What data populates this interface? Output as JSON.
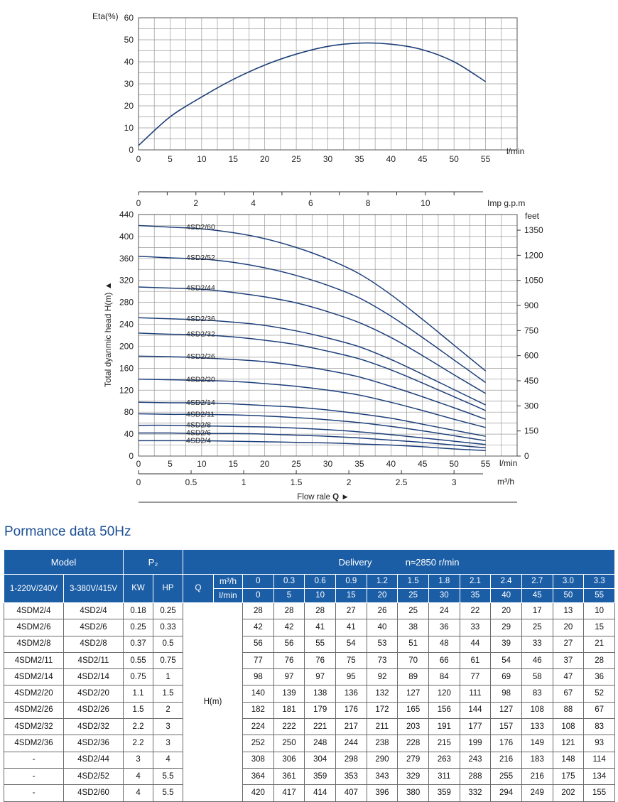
{
  "chart_data": [
    {
      "type": "line",
      "ylabel": "Eta(%)",
      "xlabel": "l/min",
      "x_ticks": [
        0,
        5,
        10,
        15,
        20,
        25,
        30,
        35,
        40,
        45,
        50,
        55
      ],
      "y_ticks": [
        0,
        10,
        20,
        30,
        40,
        50,
        60
      ],
      "xlim": [
        0,
        60
      ],
      "ylim": [
        0,
        60
      ],
      "grid": true,
      "series": [
        {
          "x": [
            0,
            5,
            10,
            15,
            20,
            25,
            30,
            35,
            40,
            45,
            50,
            55
          ],
          "y": [
            2,
            15,
            24,
            32,
            38.5,
            43.5,
            47,
            48.5,
            48,
            45.5,
            40,
            31
          ]
        }
      ]
    },
    {
      "type": "line",
      "ylabel": "Total dyanmic head H(m) ▲",
      "xlabel": "l/min",
      "x_ticks": [
        0,
        5,
        10,
        15,
        20,
        25,
        30,
        35,
        40,
        45,
        50,
        55
      ],
      "y_ticks": [
        0,
        40,
        80,
        120,
        160,
        200,
        240,
        280,
        320,
        360,
        400,
        440
      ],
      "xlim": [
        0,
        60
      ],
      "ylim": [
        0,
        440
      ],
      "grid": true,
      "secondary_y": {
        "label": "feet",
        "ticks": [
          0,
          150,
          300,
          450,
          600,
          750,
          900,
          1050,
          1200,
          1350
        ]
      },
      "top_x": {
        "label": "Imp g.p.m",
        "ticks": [
          0,
          2,
          4,
          6,
          8,
          10
        ]
      },
      "bottom_x2": {
        "label": "m³/h",
        "ticks": [
          "0",
          "0.5",
          "1",
          "1.5",
          "2",
          "2.5",
          "3"
        ]
      },
      "flow_label": "Flow rale",
      "flow_symbol": "Q",
      "x": [
        0,
        5,
        10,
        15,
        20,
        25,
        30,
        35,
        40,
        45,
        50,
        55
      ],
      "series": [
        {
          "name": "4SD2/60",
          "values": [
            420,
            417,
            414,
            407,
            396,
            380,
            359,
            332,
            294,
            249,
            202,
            155
          ]
        },
        {
          "name": "4SD2/52",
          "values": [
            364,
            361,
            359,
            353,
            343,
            329,
            311,
            288,
            255,
            216,
            175,
            134
          ]
        },
        {
          "name": "4SD2/44",
          "values": [
            308,
            306,
            304,
            298,
            290,
            279,
            263,
            243,
            216,
            183,
            148,
            114
          ]
        },
        {
          "name": "4SD2/36",
          "values": [
            252,
            250,
            248,
            244,
            238,
            228,
            215,
            199,
            176,
            149,
            121,
            93
          ]
        },
        {
          "name": "4SD2/32",
          "values": [
            224,
            222,
            221,
            217,
            211,
            203,
            191,
            177,
            157,
            133,
            108,
            83
          ]
        },
        {
          "name": "4SD2/26",
          "values": [
            182,
            181,
            179,
            176,
            172,
            165,
            156,
            144,
            127,
            108,
            88,
            67
          ]
        },
        {
          "name": "4SD2/20",
          "values": [
            140,
            139,
            138,
            136,
            132,
            127,
            120,
            111,
            98,
            83,
            67,
            52
          ]
        },
        {
          "name": "4SD2/14",
          "values": [
            98,
            97,
            97,
            95,
            92,
            89,
            84,
            77,
            69,
            58,
            47,
            36
          ]
        },
        {
          "name": "4SD2/11",
          "values": [
            77,
            76,
            76,
            75,
            73,
            70,
            66,
            61,
            54,
            46,
            37,
            28
          ]
        },
        {
          "name": "4SD2/8",
          "values": [
            56,
            56,
            55,
            54,
            53,
            51,
            48,
            44,
            39,
            33,
            27,
            21
          ]
        },
        {
          "name": "4SD2/6",
          "values": [
            42,
            42,
            41,
            41,
            40,
            38,
            36,
            33,
            29,
            25,
            20,
            15
          ]
        },
        {
          "name": "4SD2/4",
          "values": [
            28,
            28,
            28,
            27,
            26,
            25,
            24,
            22,
            20,
            17,
            13,
            10
          ]
        }
      ]
    },
    {
      "type": "table",
      "title": "Pormance data 50Hz",
      "header": {
        "model": "Model",
        "p2": "P₂",
        "delivery": "Delivery",
        "speed": "n≈2850 r/min",
        "col_1ph": "1-220V/240V",
        "col_3ph": "3-380V/415V",
        "kw": "KW",
        "hp": "HP",
        "q": "Q",
        "unit_m3h": "m³/h",
        "unit_lmin": "l/min",
        "h_label": "H(m)"
      },
      "q_m3h": [
        "0",
        "0.3",
        "0.6",
        "0.9",
        "1.2",
        "1.5",
        "1.8",
        "2.1",
        "2.4",
        "2.7",
        "3.0",
        "3.3"
      ],
      "q_lmin": [
        "0",
        "5",
        "10",
        "15",
        "20",
        "25",
        "30",
        "35",
        "40",
        "45",
        "50",
        "55"
      ],
      "rows": [
        {
          "m1": "4SDM2/4",
          "m3": "4SD2/4",
          "kw": "0.18",
          "hp": "0.25",
          "h": [
            28,
            28,
            28,
            27,
            26,
            25,
            24,
            22,
            20,
            17,
            13,
            10
          ]
        },
        {
          "m1": "4SDM2/6",
          "m3": "4SD2/6",
          "kw": "0.25",
          "hp": "0.33",
          "h": [
            42,
            42,
            41,
            41,
            40,
            38,
            36,
            33,
            29,
            25,
            20,
            15
          ]
        },
        {
          "m1": "4SDM2/8",
          "m3": "4SD2/8",
          "kw": "0.37",
          "hp": "0.5",
          "h": [
            56,
            56,
            55,
            54,
            53,
            51,
            48,
            44,
            39,
            33,
            27,
            21
          ]
        },
        {
          "m1": "4SDM2/11",
          "m3": "4SD2/11",
          "kw": "0.55",
          "hp": "0.75",
          "h": [
            77,
            76,
            76,
            75,
            73,
            70,
            66,
            61,
            54,
            46,
            37,
            28
          ]
        },
        {
          "m1": "4SDM2/14",
          "m3": "4SD2/14",
          "kw": "0.75",
          "hp": "1",
          "h": [
            98,
            97,
            97,
            95,
            92,
            89,
            84,
            77,
            69,
            58,
            47,
            36
          ]
        },
        {
          "m1": "4SDM2/20",
          "m3": "4SD2/20",
          "kw": "1.1",
          "hp": "1.5",
          "h": [
            140,
            139,
            138,
            136,
            132,
            127,
            120,
            111,
            98,
            83,
            67,
            52
          ]
        },
        {
          "m1": "4SDM2/26",
          "m3": "4SD2/26",
          "kw": "1.5",
          "hp": "2",
          "h": [
            182,
            181,
            179,
            176,
            172,
            165,
            156,
            144,
            127,
            108,
            88,
            67
          ]
        },
        {
          "m1": "4SDM2/32",
          "m3": "4SD2/32",
          "kw": "2.2",
          "hp": "3",
          "h": [
            224,
            222,
            221,
            217,
            211,
            203,
            191,
            177,
            157,
            133,
            108,
            83
          ]
        },
        {
          "m1": "4SDM2/36",
          "m3": "4SD2/36",
          "kw": "2.2",
          "hp": "3",
          "h": [
            252,
            250,
            248,
            244,
            238,
            228,
            215,
            199,
            176,
            149,
            121,
            93
          ]
        },
        {
          "m1": "-",
          "m3": "4SD2/44",
          "kw": "3",
          "hp": "4",
          "h": [
            308,
            306,
            304,
            298,
            290,
            279,
            263,
            243,
            216,
            183,
            148,
            114
          ]
        },
        {
          "m1": "-",
          "m3": "4SD2/52",
          "kw": "4",
          "hp": "5.5",
          "h": [
            364,
            361,
            359,
            353,
            343,
            329,
            311,
            288,
            255,
            216,
            175,
            134
          ]
        },
        {
          "m1": "-",
          "m3": "4SD2/60",
          "kw": "4",
          "hp": "5.5",
          "h": [
            420,
            417,
            414,
            407,
            396,
            380,
            359,
            332,
            294,
            249,
            202,
            155
          ]
        }
      ]
    }
  ],
  "colors": {
    "curve": "#1d3f7a",
    "grid": "#9a9a9a",
    "header_bg": "#1b5ea6",
    "title": "#1b4f93"
  }
}
